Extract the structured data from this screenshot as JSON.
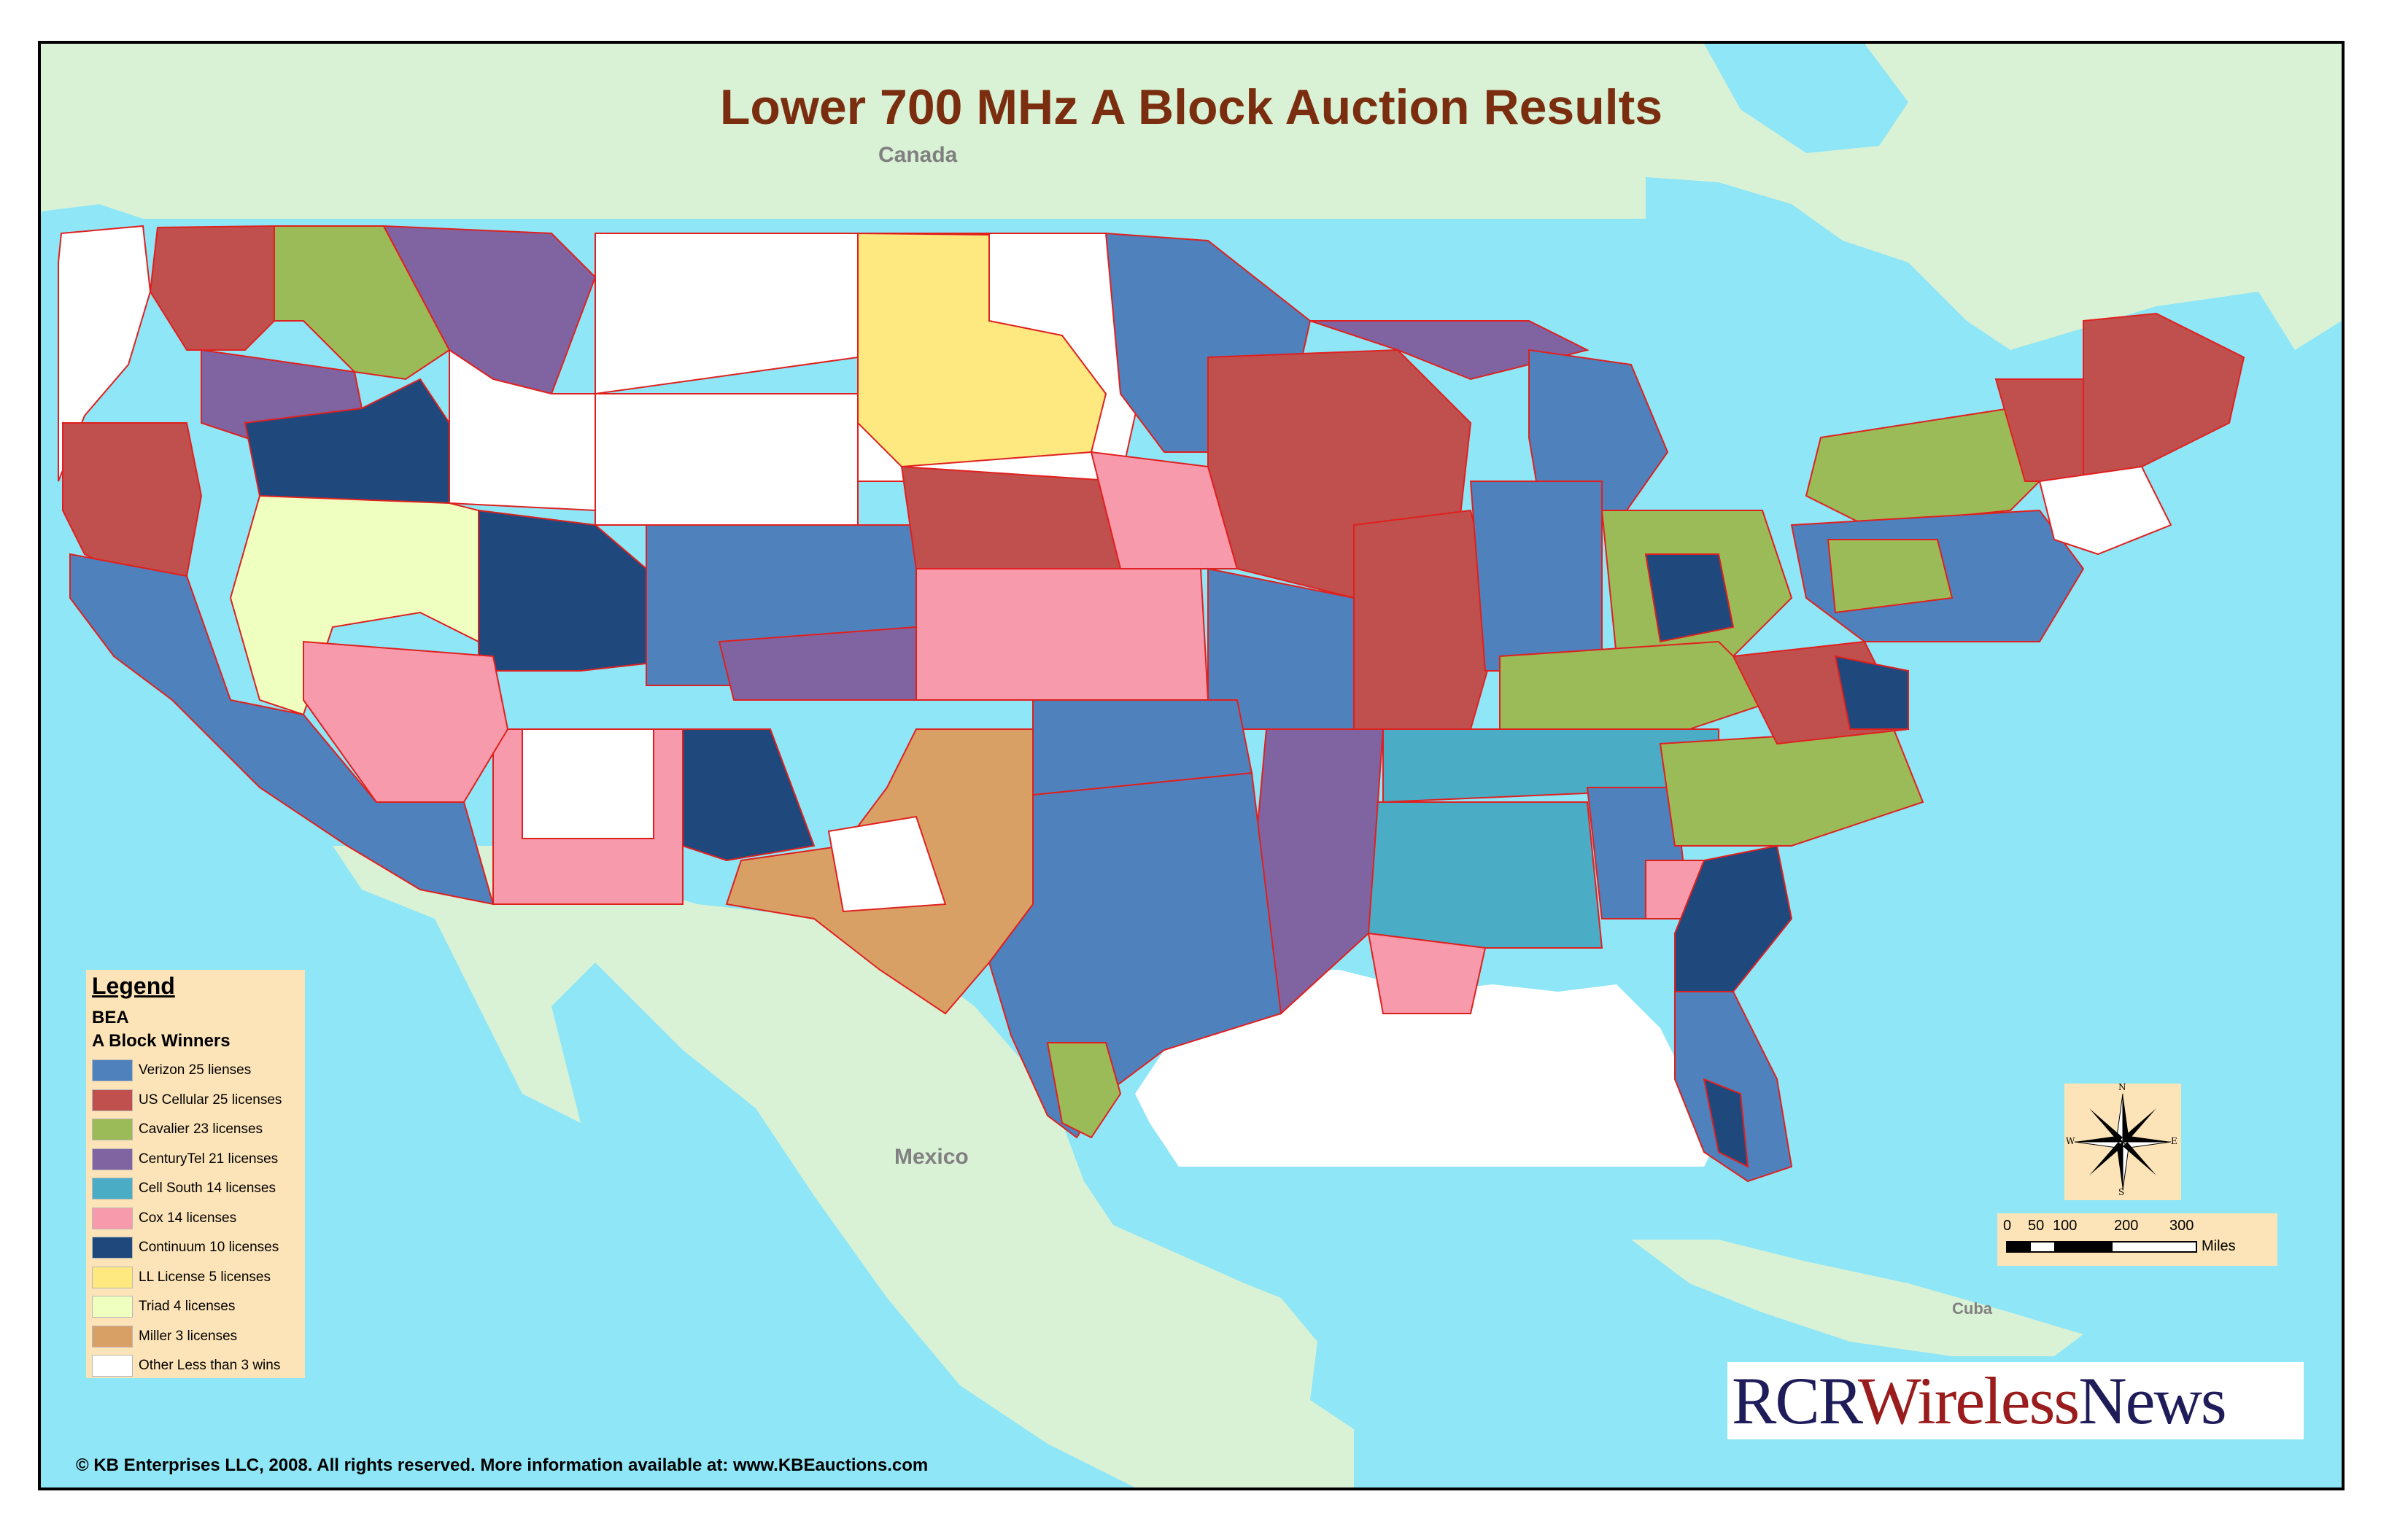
{
  "title": "Lower 700 MHz A Block Auction Results",
  "places": {
    "canada": "Canada",
    "mexico": "Mexico",
    "cuba": "Cuba"
  },
  "legend": {
    "heading": "Legend",
    "layer": "BEA",
    "group": "A Block Winners",
    "items": [
      {
        "label": "Verizon 25 lienses",
        "color": "#4f81bd"
      },
      {
        "label": "US Cellular 25 licenses",
        "color": "#c0504d"
      },
      {
        "label": "Cavalier 23 licenses",
        "color": "#9bbb59"
      },
      {
        "label": "CenturyTel 21 licenses",
        "color": "#8064a2"
      },
      {
        "label": "Cell South 14 licenses",
        "color": "#4bacc6"
      },
      {
        "label": "Cox 14 licenses",
        "color": "#f79aab"
      },
      {
        "label": "Continuum 10 licenses",
        "color": "#1f497d"
      },
      {
        "label": "LL License 5 licenses",
        "color": "#fde97f"
      },
      {
        "label": "Triad 4 licenses",
        "color": "#efffbf"
      },
      {
        "label": "Miller 3 licenses",
        "color": "#d9a066"
      },
      {
        "label": "Other Less than 3 wins",
        "color": "#ffffff"
      }
    ]
  },
  "compass": {
    "n": "N",
    "s": "S",
    "e": "E",
    "w": "W"
  },
  "scale": {
    "ticks": [
      "0",
      "50",
      "100",
      "200",
      "300"
    ],
    "unit": "Miles"
  },
  "copyright": "© KB Enterprises LLC, 2008.  All rights reserved.  More information available at: www.KBEauctions.com",
  "logo": {
    "part1": "RCR",
    "part2": "Wireless",
    "part3": "News"
  },
  "colors": {
    "water": "#8ee6f6",
    "land": "#d9f2d6",
    "border": "#e0201e",
    "gulf": "#ffffff"
  }
}
